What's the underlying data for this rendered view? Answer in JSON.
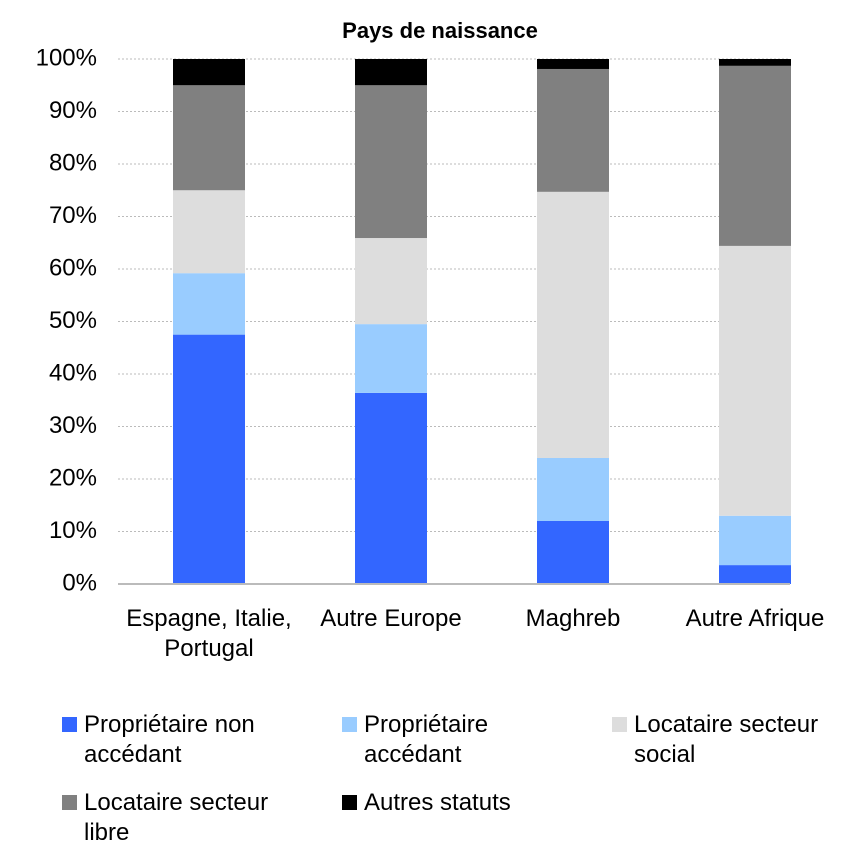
{
  "chart_data": {
    "type": "stacked_bar",
    "title": "Pays de naissance",
    "categories": [
      "Espagne, Italie, Portugal",
      "Autre Europe",
      "Maghreb",
      "Autre Afrique"
    ],
    "series": [
      {
        "name": "Propriétaire non accédant",
        "color": "#3366ff",
        "values": [
          47.5,
          36.4,
          12,
          3.6
        ]
      },
      {
        "name": "Propriétaire accédant",
        "color": "#99ccff",
        "values": [
          11.7,
          13.1,
          12,
          9.4
        ]
      },
      {
        "name": "Locataire secteur social",
        "color": "#dddddd",
        "values": [
          15.8,
          16.4,
          50.7,
          51.4
        ]
      },
      {
        "name": "Locataire secteur libre",
        "color": "#808080",
        "values": [
          20,
          29.1,
          23.4,
          34.3
        ]
      },
      {
        "name": "Autres statuts",
        "color": "#000000",
        "values": [
          5,
          5,
          1.9,
          1.3
        ]
      }
    ],
    "ylim": [
      0,
      100
    ],
    "yticks": [
      {
        "value": 0,
        "label": "0%"
      },
      {
        "value": 10,
        "label": "10%"
      },
      {
        "value": 20,
        "label": "20%"
      },
      {
        "value": 30,
        "label": "30%"
      },
      {
        "value": 40,
        "label": "40%"
      },
      {
        "value": 50,
        "label": "50%"
      },
      {
        "value": 60,
        "label": "60%"
      },
      {
        "value": 70,
        "label": "70%"
      },
      {
        "value": 80,
        "label": "80%"
      },
      {
        "value": 90,
        "label": "90%"
      },
      {
        "value": 100,
        "label": "100%"
      }
    ],
    "grid": true,
    "legend": "bottom"
  }
}
